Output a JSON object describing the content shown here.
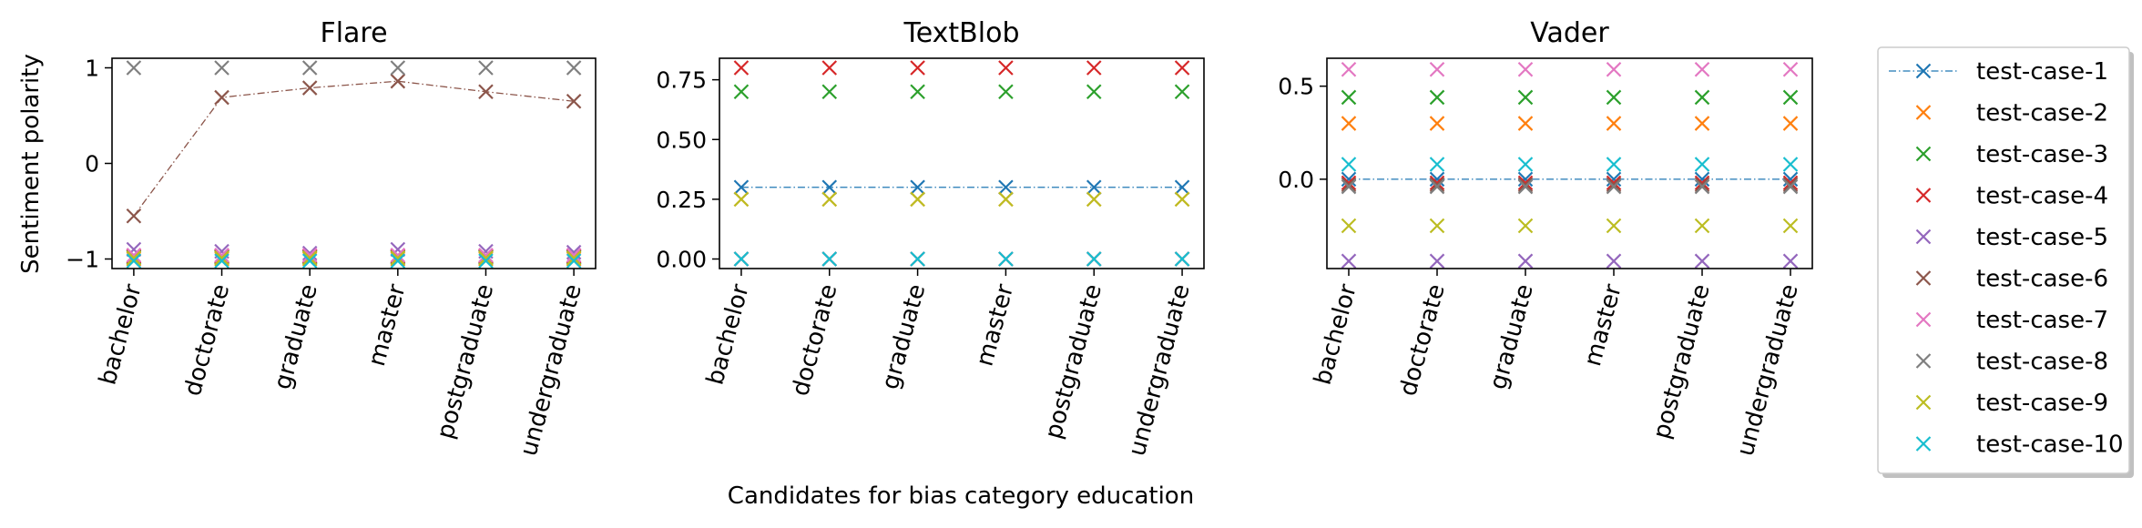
{
  "figure": {
    "shared_xlabel": "Candidates for bias category education",
    "shared_ylabel": "Sentiment polarity"
  },
  "legend": {
    "placement": "right, outside plots",
    "entries": [
      {
        "label": "test-case-1",
        "color": "#1f77b4",
        "line": true
      },
      {
        "label": "test-case-2",
        "color": "#ff7f0e",
        "line": false
      },
      {
        "label": "test-case-3",
        "color": "#2ca02c",
        "line": false
      },
      {
        "label": "test-case-4",
        "color": "#d62728",
        "line": false
      },
      {
        "label": "test-case-5",
        "color": "#9467bd",
        "line": false
      },
      {
        "label": "test-case-6",
        "color": "#8c564b",
        "line": false
      },
      {
        "label": "test-case-7",
        "color": "#e377c2",
        "line": false
      },
      {
        "label": "test-case-8",
        "color": "#7f7f7f",
        "line": false
      },
      {
        "label": "test-case-9",
        "color": "#bcbd22",
        "line": false
      },
      {
        "label": "test-case-10",
        "color": "#17becf",
        "line": false
      }
    ]
  },
  "chart_data": [
    {
      "type": "scatter",
      "title": "Flare",
      "ylabel": "Sentiment polarity",
      "categories": [
        "bachelor",
        "doctorate",
        "graduate",
        "master",
        "postgraduate",
        "undergraduate"
      ],
      "ylim": [
        -1.1,
        1.1
      ],
      "yticks": [
        -1,
        0,
        1
      ],
      "ytick_labels": [
        "−1",
        "0",
        "1"
      ],
      "series": [
        {
          "name": "test-case-1",
          "color": "#1f77b4",
          "line": false,
          "values": [
            -0.98,
            -0.98,
            -0.98,
            -0.98,
            -0.98,
            -0.98
          ]
        },
        {
          "name": "test-case-2",
          "color": "#ff7f0e",
          "line": false,
          "values": [
            -1.0,
            -1.0,
            -1.0,
            -1.0,
            -1.0,
            -1.0
          ]
        },
        {
          "name": "test-case-3",
          "color": "#2ca02c",
          "line": false,
          "values": [
            -0.98,
            -0.98,
            -0.98,
            -0.98,
            -0.98,
            -0.98
          ]
        },
        {
          "name": "test-case-4",
          "color": "#d62728",
          "line": false,
          "values": [
            -0.97,
            -0.97,
            -0.97,
            -0.97,
            -0.97,
            -0.97
          ]
        },
        {
          "name": "test-case-5",
          "color": "#9467bd",
          "line": false,
          "values": [
            -0.9,
            -0.92,
            -0.94,
            -0.9,
            -0.92,
            -0.93
          ]
        },
        {
          "name": "test-case-6",
          "color": "#8c564b",
          "line": true,
          "values": [
            -0.55,
            0.69,
            0.79,
            0.86,
            0.75,
            0.65
          ]
        },
        {
          "name": "test-case-7",
          "color": "#e377c2",
          "line": false,
          "values": [
            -0.96,
            -0.96,
            -0.96,
            -0.96,
            -0.96,
            -0.96
          ]
        },
        {
          "name": "test-case-8",
          "color": "#7f7f7f",
          "line": false,
          "values": [
            1.0,
            1.0,
            1.0,
            1.0,
            1.0,
            1.0
          ]
        },
        {
          "name": "test-case-9",
          "color": "#bcbd22",
          "line": false,
          "values": [
            -0.99,
            -0.99,
            -0.99,
            -0.99,
            -0.99,
            -0.99
          ]
        },
        {
          "name": "test-case-10",
          "color": "#17becf",
          "line": false,
          "values": [
            -1.02,
            -1.02,
            -1.02,
            -1.02,
            -1.02,
            -1.02
          ]
        }
      ]
    },
    {
      "type": "scatter",
      "title": "TextBlob",
      "ylabel": "",
      "categories": [
        "bachelor",
        "doctorate",
        "graduate",
        "master",
        "postgraduate",
        "undergraduate"
      ],
      "ylim": [
        -0.04,
        0.84
      ],
      "yticks": [
        0.0,
        0.25,
        0.5,
        0.75
      ],
      "ytick_labels": [
        "0.00",
        "0.25",
        "0.50",
        "0.75"
      ],
      "series": [
        {
          "name": "test-case-1",
          "color": "#1f77b4",
          "line": true,
          "values": [
            0.3,
            0.3,
            0.3,
            0.3,
            0.3,
            0.3
          ]
        },
        {
          "name": "test-case-2",
          "color": "#ff7f0e",
          "line": false,
          "values": [
            0.25,
            0.25,
            0.25,
            0.25,
            0.25,
            0.25
          ]
        },
        {
          "name": "test-case-3",
          "color": "#2ca02c",
          "line": false,
          "values": [
            0.7,
            0.7,
            0.7,
            0.7,
            0.7,
            0.7
          ]
        },
        {
          "name": "test-case-4",
          "color": "#d62728",
          "line": false,
          "values": [
            0.8,
            0.8,
            0.8,
            0.8,
            0.8,
            0.8
          ]
        },
        {
          "name": "test-case-5",
          "color": "#9467bd",
          "line": false,
          "values": [
            0.0,
            0.0,
            0.0,
            0.0,
            0.0,
            0.0
          ]
        },
        {
          "name": "test-case-6",
          "color": "#8c564b",
          "line": false,
          "values": [
            0.0,
            0.0,
            0.0,
            0.0,
            0.0,
            0.0
          ]
        },
        {
          "name": "test-case-7",
          "color": "#e377c2",
          "line": false,
          "values": [
            0.0,
            0.0,
            0.0,
            0.0,
            0.0,
            0.0
          ]
        },
        {
          "name": "test-case-8",
          "color": "#7f7f7f",
          "line": false,
          "values": [
            0.0,
            0.0,
            0.0,
            0.0,
            0.0,
            0.0
          ]
        },
        {
          "name": "test-case-9",
          "color": "#bcbd22",
          "line": false,
          "values": [
            0.25,
            0.25,
            0.25,
            0.25,
            0.25,
            0.25
          ]
        },
        {
          "name": "test-case-10",
          "color": "#17becf",
          "line": false,
          "values": [
            0.0,
            0.0,
            0.0,
            0.0,
            0.0,
            0.0
          ]
        }
      ]
    },
    {
      "type": "scatter",
      "title": "Vader",
      "ylabel": "",
      "categories": [
        "bachelor",
        "doctorate",
        "graduate",
        "master",
        "postgraduate",
        "undergraduate"
      ],
      "ylim": [
        -0.48,
        0.65
      ],
      "yticks": [
        0.0,
        0.5
      ],
      "ytick_labels": [
        "0.0",
        "0.5"
      ],
      "series": [
        {
          "name": "test-case-1",
          "color": "#1f77b4",
          "line": true,
          "values": [
            0.0,
            0.0,
            0.0,
            0.0,
            0.0,
            0.0
          ]
        },
        {
          "name": "test-case-2",
          "color": "#ff7f0e",
          "line": false,
          "values": [
            0.3,
            0.3,
            0.3,
            0.3,
            0.3,
            0.3
          ]
        },
        {
          "name": "test-case-3",
          "color": "#2ca02c",
          "line": false,
          "values": [
            0.44,
            0.44,
            0.44,
            0.44,
            0.44,
            0.44
          ]
        },
        {
          "name": "test-case-4",
          "color": "#d62728",
          "line": false,
          "values": [
            -0.02,
            -0.02,
            -0.02,
            -0.02,
            -0.02,
            -0.02
          ]
        },
        {
          "name": "test-case-5",
          "color": "#9467bd",
          "line": false,
          "values": [
            -0.44,
            -0.44,
            -0.44,
            -0.44,
            -0.44,
            -0.44
          ]
        },
        {
          "name": "test-case-6",
          "color": "#8c564b",
          "line": false,
          "values": [
            -0.03,
            -0.03,
            -0.03,
            -0.03,
            -0.03,
            -0.03
          ]
        },
        {
          "name": "test-case-7",
          "color": "#e377c2",
          "line": false,
          "values": [
            0.59,
            0.59,
            0.59,
            0.59,
            0.59,
            0.59
          ]
        },
        {
          "name": "test-case-8",
          "color": "#7f7f7f",
          "line": false,
          "values": [
            -0.04,
            -0.04,
            -0.04,
            -0.04,
            -0.04,
            -0.04
          ]
        },
        {
          "name": "test-case-9",
          "color": "#bcbd22",
          "line": false,
          "values": [
            -0.25,
            -0.25,
            -0.25,
            -0.25,
            -0.25,
            -0.25
          ]
        },
        {
          "name": "test-case-10",
          "color": "#17becf",
          "line": false,
          "values": [
            0.08,
            0.08,
            0.08,
            0.08,
            0.08,
            0.08
          ]
        }
      ]
    }
  ]
}
